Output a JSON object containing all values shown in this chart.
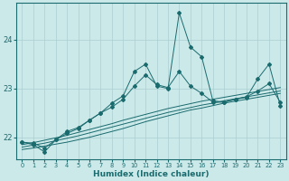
{
  "xlabel": "Humidex (Indice chaleur)",
  "background_color": "#cce9ea",
  "grid_color": "#aacfd1",
  "line_color": "#1a6b6e",
  "xlim": [
    -0.5,
    23.5
  ],
  "ylim": [
    21.55,
    24.75
  ],
  "yticks": [
    22,
    23,
    24
  ],
  "xticks": [
    0,
    1,
    2,
    3,
    4,
    5,
    6,
    7,
    8,
    9,
    10,
    11,
    12,
    13,
    14,
    15,
    16,
    17,
    18,
    19,
    20,
    21,
    22,
    23
  ],
  "line_straight1": [
    21.75,
    21.78,
    21.82,
    21.86,
    21.9,
    21.95,
    22.0,
    22.06,
    22.12,
    22.18,
    22.25,
    22.32,
    22.38,
    22.44,
    22.5,
    22.56,
    22.6,
    22.65,
    22.7,
    22.74,
    22.78,
    22.82,
    22.86,
    22.9
  ],
  "line_straight2": [
    21.8,
    21.84,
    21.88,
    21.93,
    21.98,
    22.03,
    22.09,
    22.15,
    22.21,
    22.27,
    22.33,
    22.39,
    22.45,
    22.51,
    22.56,
    22.61,
    22.66,
    22.7,
    22.75,
    22.79,
    22.83,
    22.87,
    22.91,
    22.95
  ],
  "line_straight3": [
    21.85,
    21.89,
    21.94,
    21.99,
    22.04,
    22.1,
    22.16,
    22.22,
    22.28,
    22.35,
    22.41,
    22.47,
    22.53,
    22.59,
    22.64,
    22.69,
    22.74,
    22.78,
    22.82,
    22.86,
    22.9,
    22.94,
    22.98,
    23.02
  ],
  "line_jagged": [
    21.9,
    21.85,
    21.7,
    21.95,
    22.12,
    22.2,
    22.35,
    22.5,
    22.7,
    22.85,
    23.35,
    23.5,
    23.05,
    23.0,
    24.55,
    23.85,
    23.65,
    22.75,
    22.72,
    22.78,
    22.82,
    23.2,
    23.5,
    22.65
  ],
  "line_med": [
    21.9,
    21.88,
    21.78,
    21.95,
    22.08,
    22.18,
    22.35,
    22.5,
    22.62,
    22.78,
    23.05,
    23.28,
    23.08,
    23.02,
    23.35,
    23.05,
    22.9,
    22.72,
    22.72,
    22.78,
    22.83,
    22.95,
    23.1,
    22.72
  ]
}
